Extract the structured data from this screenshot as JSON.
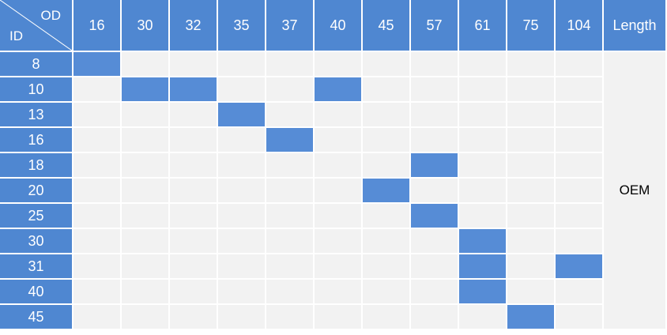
{
  "corner": {
    "od_label": "OD",
    "id_label": "ID"
  },
  "columns": [
    "16",
    "30",
    "32",
    "35",
    "37",
    "40",
    "45",
    "57",
    "61",
    "75",
    "104"
  ],
  "length_header": "Length",
  "length_value": "OEM",
  "rows": [
    {
      "id": "8",
      "filled": [
        "16"
      ]
    },
    {
      "id": "10",
      "filled": [
        "30",
        "32",
        "40"
      ]
    },
    {
      "id": "13",
      "filled": [
        "35"
      ]
    },
    {
      "id": "16",
      "filled": [
        "37"
      ]
    },
    {
      "id": "18",
      "filled": [
        "57"
      ]
    },
    {
      "id": "20",
      "filled": [
        "45"
      ]
    },
    {
      "id": "25",
      "filled": [
        "57"
      ]
    },
    {
      "id": "30",
      "filled": [
        "61"
      ]
    },
    {
      "id": "31",
      "filled": [
        "61",
        "104"
      ]
    },
    {
      "id": "40",
      "filled": [
        "61"
      ]
    },
    {
      "id": "45",
      "filled": [
        "75"
      ]
    }
  ],
  "colors": {
    "header": "#4f87d1",
    "filled": "#568cd6",
    "empty": "#f2f2f2"
  }
}
